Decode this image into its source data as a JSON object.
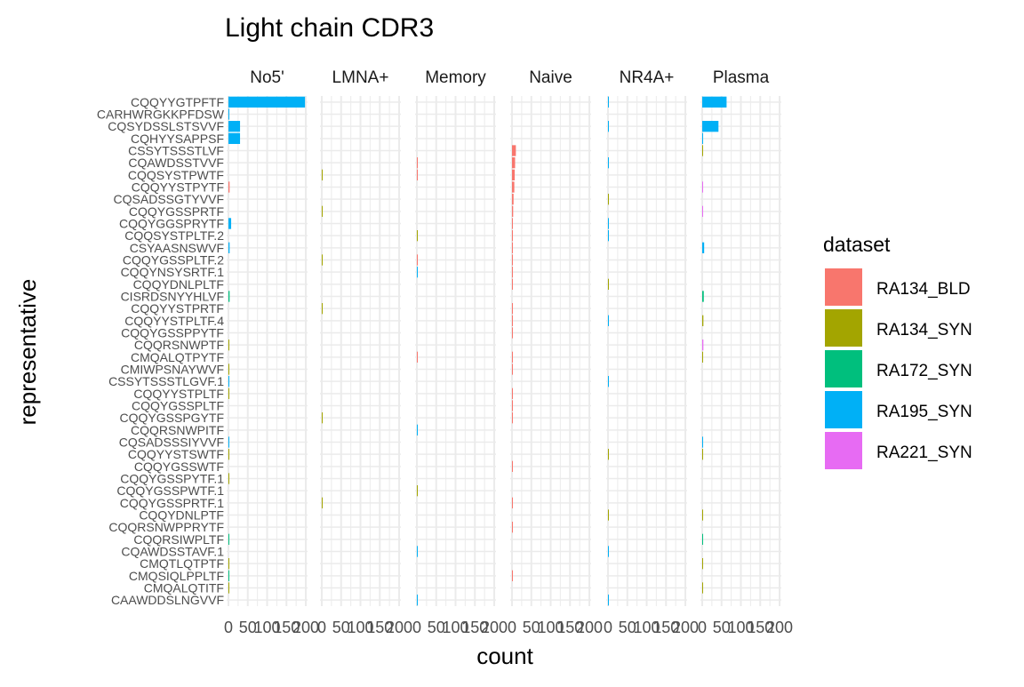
{
  "chart_data": {
    "type": "bar",
    "orientation": "horizontal",
    "title": "Light chain CDR3",
    "xlabel": "count",
    "ylabel": "representative",
    "xlim": [
      0,
      200
    ],
    "x_ticks": [
      0,
      50,
      100,
      150,
      200
    ],
    "x_tick_labels": [
      "0",
      "50",
      "100",
      "150",
      "200"
    ],
    "grid": true,
    "legend": {
      "title": "dataset",
      "position": "right",
      "entries": [
        {
          "name": "RA134_BLD",
          "color": "#F8766D"
        },
        {
          "name": "RA134_SYN",
          "color": "#A3A500"
        },
        {
          "name": "RA172_SYN",
          "color": "#00BF7D"
        },
        {
          "name": "RA195_SYN",
          "color": "#00B0F6"
        },
        {
          "name": "RA221_SYN",
          "color": "#E76BF3"
        }
      ]
    },
    "facets": [
      "No5'",
      "LMNA+",
      "Memory",
      "Naive",
      "NR4A+",
      "Plasma"
    ],
    "categories": [
      "CQQYYGTPFTF",
      "CARHWRGKKPFDSW",
      "CQSYDSSLSTSVVF",
      "CQHYYSAPPSF",
      "CSSYTSSSTLVF",
      "CQAWDSSTVVF",
      "CQQSYSTPWTF",
      "CQQYYSTPYTF",
      "CQSADSSGTYVVF",
      "CQQYGSSPRTF",
      "CQQYGGSPRYTF",
      "CQQSYSTPLTF.2",
      "CSYAASNSWVF",
      "CQQYGSSPLTF.2",
      "CQQYNSYSRTF.1",
      "CQQYDNLPLTF",
      "CISRDSNYYHLVF",
      "CQQYYSTPRTF",
      "CQQYYSTPLTF.4",
      "CQQYGSSPPYTF",
      "CQQRSNWPTF",
      "CMQALQTPYTF",
      "CMIWPSNAYWVF",
      "CSSYTSSSTLGVF.1",
      "CQQYYSTPLTF",
      "CQQYGSSPLTF",
      "CQQYGSSPGYTF",
      "CQQRSNWPITF",
      "CQSADSSSIYVVF",
      "CQQYYSTSWTF",
      "CQQYGSSWTF",
      "CQQYGSSPYTF.1",
      "CQQYGSSPWTF.1",
      "CQQYGSSPRTF.1",
      "CQQYDNLPTF",
      "CQQRSNWPPRYTF",
      "CQQRSIWPLTF",
      "CQAWDSSTAVF.1",
      "CMQTLQTPTF",
      "CMQSIQLPPLTF",
      "CMQALQTITF",
      "CAAWDDSLNGVVF"
    ],
    "bars": [
      {
        "facet": "No5'",
        "category": "CQQYYGTPFTF",
        "dataset": "RA195_SYN",
        "value": 198
      },
      {
        "facet": "No5'",
        "category": "CARHWRGKKPFDSW",
        "dataset": "RA195_SYN",
        "value": 2
      },
      {
        "facet": "No5'",
        "category": "CQSYDSSLSTSVVF",
        "dataset": "RA195_SYN",
        "value": 30
      },
      {
        "facet": "No5'",
        "category": "CQHYYSAPPSF",
        "dataset": "RA195_SYN",
        "value": 30
      },
      {
        "facet": "No5'",
        "category": "CQQYYSTPYTF",
        "dataset": "RA134_BLD",
        "value": 3
      },
      {
        "facet": "No5'",
        "category": "CQQYGGSPRYTF",
        "dataset": "RA195_SYN",
        "value": 7
      },
      {
        "facet": "No5'",
        "category": "CSYAASNSWVF",
        "dataset": "RA195_SYN",
        "value": 3
      },
      {
        "facet": "No5'",
        "category": "CISRDSNYYHLVF",
        "dataset": "RA172_SYN",
        "value": 3
      },
      {
        "facet": "No5'",
        "category": "CQQRSNWPTF",
        "dataset": "RA134_SYN",
        "value": 2
      },
      {
        "facet": "No5'",
        "category": "CMIWPSNAYWVF",
        "dataset": "RA134_SYN",
        "value": 2
      },
      {
        "facet": "No5'",
        "category": "CSSYTSSSTLGVF.1",
        "dataset": "RA195_SYN",
        "value": 2
      },
      {
        "facet": "No5'",
        "category": "CQQYYSTPLTF",
        "dataset": "RA134_SYN",
        "value": 2
      },
      {
        "facet": "No5'",
        "category": "CQSADSSSIYVVF",
        "dataset": "RA195_SYN",
        "value": 2
      },
      {
        "facet": "No5'",
        "category": "CQQYYSTSWTF",
        "dataset": "RA134_SYN",
        "value": 2
      },
      {
        "facet": "No5'",
        "category": "CQQYGSSPYTF.1",
        "dataset": "RA134_SYN",
        "value": 2
      },
      {
        "facet": "No5'",
        "category": "CQQRSIWPLTF",
        "dataset": "RA172_SYN",
        "value": 2
      },
      {
        "facet": "No5'",
        "category": "CMQTLQTPTF",
        "dataset": "RA134_SYN",
        "value": 2
      },
      {
        "facet": "No5'",
        "category": "CMQSIQLPPLTF",
        "dataset": "RA172_SYN",
        "value": 2
      },
      {
        "facet": "No5'",
        "category": "CMQALQTITF",
        "dataset": "RA134_SYN",
        "value": 2
      },
      {
        "facet": "LMNA+",
        "category": "CQQSYSTPWTF",
        "dataset": "RA134_SYN",
        "value": 2
      },
      {
        "facet": "LMNA+",
        "category": "CQQYGSSPRTF",
        "dataset": "RA134_SYN",
        "value": 2
      },
      {
        "facet": "LMNA+",
        "category": "CQQYGSSPLTF.2",
        "dataset": "RA134_SYN",
        "value": 2
      },
      {
        "facet": "LMNA+",
        "category": "CQQYYSTPRTF",
        "dataset": "RA134_SYN",
        "value": 2
      },
      {
        "facet": "LMNA+",
        "category": "CQQYGSSPGYTF",
        "dataset": "RA134_SYN",
        "value": 2
      },
      {
        "facet": "LMNA+",
        "category": "CQQYGSSPRTF.1",
        "dataset": "RA134_SYN",
        "value": 2
      },
      {
        "facet": "Memory",
        "category": "CQAWDSSTVVF",
        "dataset": "RA134_BLD",
        "value": 2
      },
      {
        "facet": "Memory",
        "category": "CQQSYSTPWTF",
        "dataset": "RA134_BLD",
        "value": 2
      },
      {
        "facet": "Memory",
        "category": "CQQSYSTPLTF.2",
        "dataset": "RA134_SYN",
        "value": 2
      },
      {
        "facet": "Memory",
        "category": "CQQYGSSPLTF.2",
        "dataset": "RA134_BLD",
        "value": 2
      },
      {
        "facet": "Memory",
        "category": "CQQYNSYSRTF.1",
        "dataset": "RA195_SYN",
        "value": 2
      },
      {
        "facet": "Memory",
        "category": "CMQALQTPYTF",
        "dataset": "RA134_BLD",
        "value": 2
      },
      {
        "facet": "Memory",
        "category": "CQQRSNWPITF",
        "dataset": "RA195_SYN",
        "value": 2
      },
      {
        "facet": "Memory",
        "category": "CQQYGSSPWTF.1",
        "dataset": "RA134_SYN",
        "value": 2
      },
      {
        "facet": "Memory",
        "category": "CQAWDSSTAVF.1",
        "dataset": "RA195_SYN",
        "value": 2
      },
      {
        "facet": "Memory",
        "category": "CAAWDDSLNGVVF",
        "dataset": "RA195_SYN",
        "value": 2
      },
      {
        "facet": "Naive",
        "category": "CSSYTSSSTLVF",
        "dataset": "RA134_BLD",
        "value": 10
      },
      {
        "facet": "Naive",
        "category": "CQAWDSSTVVF",
        "dataset": "RA134_BLD",
        "value": 8
      },
      {
        "facet": "Naive",
        "category": "CQQSYSTPWTF",
        "dataset": "RA134_BLD",
        "value": 7
      },
      {
        "facet": "Naive",
        "category": "CQQYYSTPYTF",
        "dataset": "RA134_BLD",
        "value": 6
      },
      {
        "facet": "Naive",
        "category": "CQSADSSGTYVVF",
        "dataset": "RA134_BLD",
        "value": 4
      },
      {
        "facet": "Naive",
        "category": "CQQYGSSPRTF",
        "dataset": "RA134_BLD",
        "value": 3
      },
      {
        "facet": "Naive",
        "category": "CQQYGGSPRYTF",
        "dataset": "RA134_BLD",
        "value": 2
      },
      {
        "facet": "Naive",
        "category": "CQQSYSTPLTF.2",
        "dataset": "RA134_BLD",
        "value": 2
      },
      {
        "facet": "Naive",
        "category": "CSYAASNSWVF",
        "dataset": "RA134_BLD",
        "value": 2
      },
      {
        "facet": "Naive",
        "category": "CQQYGSSPLTF.2",
        "dataset": "RA134_BLD",
        "value": 2
      },
      {
        "facet": "Naive",
        "category": "CQQYNSYSRTF.1",
        "dataset": "RA134_BLD",
        "value": 2
      },
      {
        "facet": "Naive",
        "category": "CQQYDNLPLTF",
        "dataset": "RA134_BLD",
        "value": 2
      },
      {
        "facet": "Naive",
        "category": "CQQYYSTPRTF",
        "dataset": "RA134_BLD",
        "value": 2
      },
      {
        "facet": "Naive",
        "category": "CQQYYSTPLTF.4",
        "dataset": "RA134_BLD",
        "value": 2
      },
      {
        "facet": "Naive",
        "category": "CQQYGSSPPYTF",
        "dataset": "RA134_BLD",
        "value": 2
      },
      {
        "facet": "Naive",
        "category": "CMQALQTPYTF",
        "dataset": "RA134_BLD",
        "value": 2
      },
      {
        "facet": "Naive",
        "category": "CMIWPSNAYWVF",
        "dataset": "RA134_BLD",
        "value": 2
      },
      {
        "facet": "Naive",
        "category": "CQQYYSTPLTF",
        "dataset": "RA134_BLD",
        "value": 2
      },
      {
        "facet": "Naive",
        "category": "CQQYGSSPLTF",
        "dataset": "RA134_BLD",
        "value": 2
      },
      {
        "facet": "Naive",
        "category": "CQQYGSSPGYTF",
        "dataset": "RA134_BLD",
        "value": 2
      },
      {
        "facet": "Naive",
        "category": "CQQYGSSWTF",
        "dataset": "RA134_BLD",
        "value": 2
      },
      {
        "facet": "Naive",
        "category": "CQQYGSSPRTF.1",
        "dataset": "RA134_BLD",
        "value": 2
      },
      {
        "facet": "Naive",
        "category": "CQQRSNWPPRYTF",
        "dataset": "RA134_BLD",
        "value": 2
      },
      {
        "facet": "Naive",
        "category": "CMQSIQLPPLTF",
        "dataset": "RA134_BLD",
        "value": 2
      },
      {
        "facet": "NR4A+",
        "category": "CQQYYGTPFTF",
        "dataset": "RA195_SYN",
        "value": 2
      },
      {
        "facet": "NR4A+",
        "category": "CQSYDSSLSTSVVF",
        "dataset": "RA195_SYN",
        "value": 1
      },
      {
        "facet": "NR4A+",
        "category": "CQAWDSSTVVF",
        "dataset": "RA195_SYN",
        "value": 1
      },
      {
        "facet": "NR4A+",
        "category": "CQSADSSGTYVVF",
        "dataset": "RA134_SYN",
        "value": 2
      },
      {
        "facet": "NR4A+",
        "category": "CQQYGGSPRYTF",
        "dataset": "RA195_SYN",
        "value": 1
      },
      {
        "facet": "NR4A+",
        "category": "CQQSYSTPLTF.2",
        "dataset": "RA195_SYN",
        "value": 2
      },
      {
        "facet": "NR4A+",
        "category": "CQQYDNLPLTF",
        "dataset": "RA134_SYN",
        "value": 1
      },
      {
        "facet": "NR4A+",
        "category": "CQQYYSTPLTF.4",
        "dataset": "RA195_SYN",
        "value": 1
      },
      {
        "facet": "NR4A+",
        "category": "CSSYTSSSTLGVF.1",
        "dataset": "RA195_SYN",
        "value": 2
      },
      {
        "facet": "NR4A+",
        "category": "CQQYYSTSWTF",
        "dataset": "RA134_SYN",
        "value": 1
      },
      {
        "facet": "NR4A+",
        "category": "CQQYDNLPTF",
        "dataset": "RA134_SYN",
        "value": 1
      },
      {
        "facet": "NR4A+",
        "category": "CQAWDSSTAVF.1",
        "dataset": "RA195_SYN",
        "value": 1
      },
      {
        "facet": "NR4A+",
        "category": "CAAWDDSLNGVVF",
        "dataset": "RA195_SYN",
        "value": 2
      },
      {
        "facet": "Plasma",
        "category": "CQQYYGTPFTF",
        "dataset": "RA195_SYN",
        "value": 63
      },
      {
        "facet": "Plasma",
        "category": "CQSYDSSLSTSVVF",
        "dataset": "RA195_SYN",
        "value": 42
      },
      {
        "facet": "Plasma",
        "category": "CQHYYSAPPSF",
        "dataset": "RA195_SYN",
        "value": 2
      },
      {
        "facet": "Plasma",
        "category": "CSSYTSSSTLVF",
        "dataset": "RA134_SYN",
        "value": 1
      },
      {
        "facet": "Plasma",
        "category": "CQQYYSTPYTF",
        "dataset": "RA221_SYN",
        "value": 1
      },
      {
        "facet": "Plasma",
        "category": "CQQYGSSPRTF",
        "dataset": "RA221_SYN",
        "value": 1
      },
      {
        "facet": "Plasma",
        "category": "CSYAASNSWVF",
        "dataset": "RA195_SYN",
        "value": 5
      },
      {
        "facet": "Plasma",
        "category": "CISRDSNYYHLVF",
        "dataset": "RA172_SYN",
        "value": 4
      },
      {
        "facet": "Plasma",
        "category": "CQQYYSTPLTF.4",
        "dataset": "RA134_SYN",
        "value": 3
      },
      {
        "facet": "Plasma",
        "category": "CQQRSNWPTF",
        "dataset": "RA221_SYN",
        "value": 3
      },
      {
        "facet": "Plasma",
        "category": "CMQALQTPYTF",
        "dataset": "RA134_SYN",
        "value": 2
      },
      {
        "facet": "Plasma",
        "category": "CQSADSSSIYVVF",
        "dataset": "RA195_SYN",
        "value": 1
      },
      {
        "facet": "Plasma",
        "category": "CQQYYSTSWTF",
        "dataset": "RA134_SYN",
        "value": 1
      },
      {
        "facet": "Plasma",
        "category": "CQQYDNLPTF",
        "dataset": "RA134_SYN",
        "value": 2
      },
      {
        "facet": "Plasma",
        "category": "CQQRSIWPLTF",
        "dataset": "RA172_SYN",
        "value": 1
      },
      {
        "facet": "Plasma",
        "category": "CMQTLQTPTF",
        "dataset": "RA134_SYN",
        "value": 1
      },
      {
        "facet": "Plasma",
        "category": "CMQALQTITF",
        "dataset": "RA134_SYN",
        "value": 1
      }
    ]
  }
}
